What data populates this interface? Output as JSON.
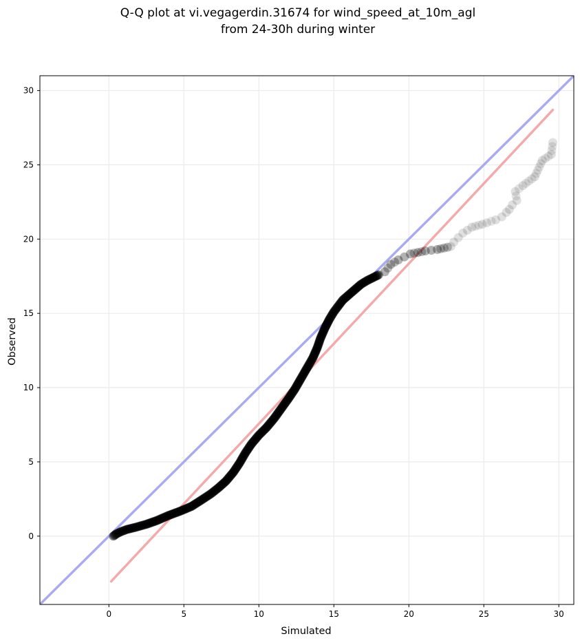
{
  "chart_data": {
    "type": "scatter",
    "title_lines": [
      "Q-Q plot at vi.vegagerdin.31674 for wind_speed_at_10m_agl",
      "from 24-30h during winter"
    ],
    "xlabel": "Simulated",
    "ylabel": "Observed",
    "xlim": [
      -4.6,
      31.0
    ],
    "ylim": [
      -4.6,
      31.0
    ],
    "xticks": [
      "0",
      "5",
      "10",
      "15",
      "20",
      "25",
      "30"
    ],
    "yticks": [
      "0",
      "5",
      "10",
      "15",
      "20",
      "25",
      "30"
    ],
    "grid": true,
    "reference_lines": [
      {
        "kind": "identity",
        "color": "#aaaaf2",
        "points": [
          [
            -4.6,
            -4.6
          ],
          [
            31.0,
            31.0
          ]
        ]
      },
      {
        "kind": "fit",
        "color": "#f4aaaa",
        "points": [
          [
            0.15,
            -3.05
          ],
          [
            29.6,
            28.7
          ]
        ]
      }
    ],
    "marker_color": "#000000",
    "series": [
      {
        "values": [
          [
            0.3,
            0.0
          ],
          [
            0.5,
            0.15
          ],
          [
            0.8,
            0.3
          ],
          [
            1.2,
            0.45
          ],
          [
            1.8,
            0.6
          ],
          [
            2.5,
            0.8
          ],
          [
            3.2,
            1.05
          ],
          [
            4.0,
            1.4
          ],
          [
            4.8,
            1.7
          ],
          [
            5.5,
            2.0
          ],
          [
            6.2,
            2.45
          ],
          [
            6.8,
            2.85
          ],
          [
            7.3,
            3.25
          ],
          [
            7.8,
            3.7
          ],
          [
            8.3,
            4.3
          ],
          [
            8.7,
            4.9
          ],
          [
            9.1,
            5.6
          ],
          [
            9.5,
            6.2
          ],
          [
            10.0,
            6.8
          ],
          [
            10.5,
            7.3
          ],
          [
            11.0,
            7.9
          ],
          [
            11.5,
            8.6
          ],
          [
            12.0,
            9.3
          ],
          [
            12.4,
            9.9
          ],
          [
            12.8,
            10.6
          ],
          [
            13.2,
            11.3
          ],
          [
            13.6,
            12.0
          ],
          [
            13.9,
            12.7
          ],
          [
            14.1,
            13.3
          ],
          [
            14.4,
            14.0
          ],
          [
            14.7,
            14.6
          ],
          [
            15.0,
            15.1
          ],
          [
            15.3,
            15.5
          ],
          [
            15.6,
            15.9
          ],
          [
            16.0,
            16.25
          ],
          [
            16.4,
            16.6
          ],
          [
            16.8,
            16.95
          ],
          [
            17.2,
            17.2
          ],
          [
            17.6,
            17.4
          ],
          [
            18.0,
            17.6
          ],
          [
            18.4,
            17.8
          ],
          [
            18.8,
            18.3
          ],
          [
            19.3,
            18.6
          ],
          [
            19.7,
            18.8
          ],
          [
            20.1,
            19.0
          ],
          [
            20.6,
            19.1
          ],
          [
            21.1,
            19.2
          ],
          [
            21.5,
            19.25
          ],
          [
            21.9,
            19.3
          ],
          [
            22.8,
            19.5
          ],
          [
            23.0,
            19.8
          ],
          [
            23.3,
            20.1
          ],
          [
            23.6,
            20.4
          ],
          [
            23.9,
            20.6
          ],
          [
            24.2,
            20.8
          ],
          [
            24.9,
            21.0
          ],
          [
            25.2,
            21.1
          ],
          [
            25.8,
            21.3
          ],
          [
            26.2,
            21.5
          ],
          [
            26.5,
            21.8
          ],
          [
            26.7,
            22.0
          ],
          [
            26.9,
            22.3
          ],
          [
            27.2,
            22.6
          ],
          [
            27.1,
            23.2
          ],
          [
            27.6,
            23.6
          ],
          [
            28.4,
            24.2
          ],
          [
            28.9,
            25.3
          ],
          [
            29.5,
            25.7
          ],
          [
            29.6,
            26.5
          ]
        ]
      }
    ]
  }
}
